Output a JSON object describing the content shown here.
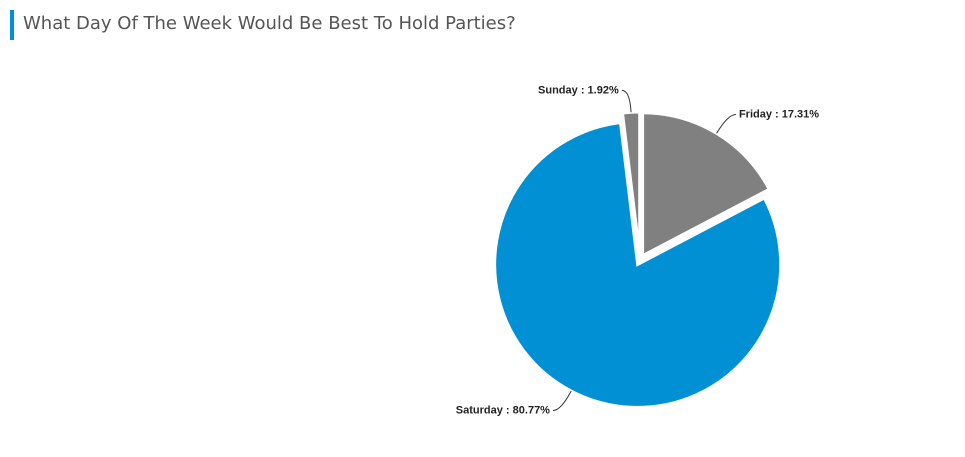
{
  "chart_data": {
    "type": "pie",
    "title": "What Day Of The Week Would Be Best To Hold Parties?",
    "categories": [
      "Friday",
      "Saturday",
      "Sunday"
    ],
    "values": [
      17.31,
      80.77,
      1.92
    ],
    "value_labels": [
      "17.31%",
      "80.77%",
      "1.92%"
    ],
    "label_separator": " : ",
    "colors": [
      "#808080",
      "#0190d4",
      "#808080"
    ]
  }
}
